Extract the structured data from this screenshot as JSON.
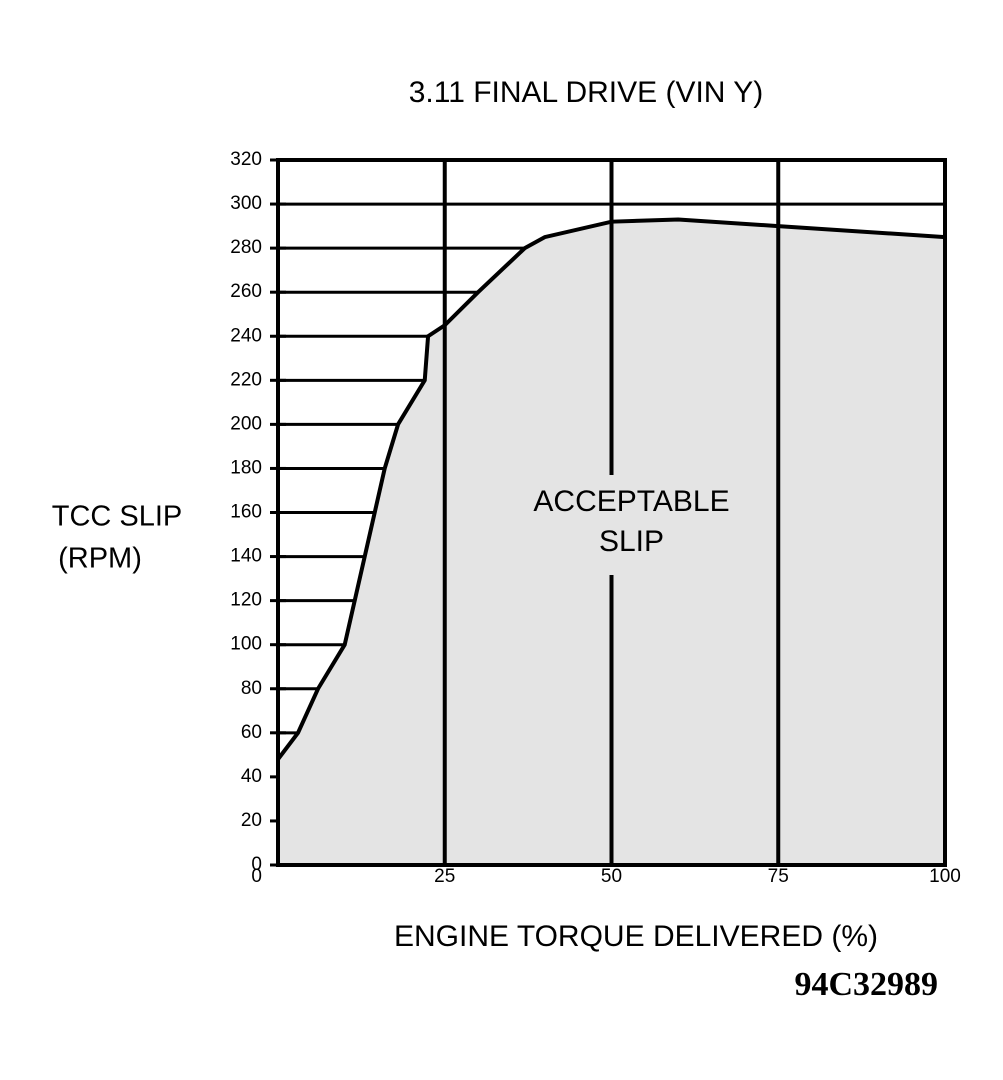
{
  "chart_data": {
    "type": "area",
    "title": "3.11 FINAL DRIVE (VIN Y)",
    "y_label": [
      "TCC SLIP",
      "(RPM)"
    ],
    "x_label": "ENGINE TORQUE DELIVERED (%)",
    "annotation": [
      "ACCEPTABLE",
      "SLIP"
    ],
    "figure_id": "94C32989",
    "x": [
      0,
      3,
      6,
      10,
      13,
      16,
      18,
      22,
      22.5,
      25,
      30,
      37,
      40,
      50,
      60,
      75,
      100
    ],
    "values": [
      48,
      60,
      80,
      100,
      140,
      180,
      200,
      220,
      240,
      245,
      260,
      280,
      285,
      292,
      293,
      290,
      285
    ],
    "color": "#e4e4e4",
    "xlim": [
      0,
      100
    ],
    "xticks": [
      0,
      25,
      50,
      75,
      100
    ],
    "ylim": [
      0,
      320
    ],
    "yticks": [
      0,
      20,
      40,
      60,
      80,
      100,
      120,
      140,
      160,
      180,
      200,
      220,
      240,
      260,
      280,
      300,
      320
    ],
    "grid": true
  }
}
